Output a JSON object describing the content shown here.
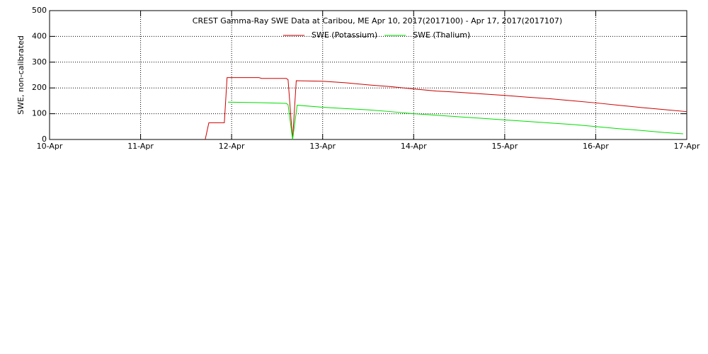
{
  "chart_data": {
    "type": "line",
    "title": "CREST Gamma-Ray SWE Data at Caribou, ME   Apr 10, 2017(2017100) - Apr 17, 2017(2017107)",
    "y_label": "SWE, non-calibrated",
    "xlim": [
      0,
      7
    ],
    "xticks": [
      {
        "value": 0,
        "label": "10-Apr"
      },
      {
        "value": 1,
        "label": "11-Apr"
      },
      {
        "value": 2,
        "label": "12-Apr"
      },
      {
        "value": 3,
        "label": "13-Apr"
      },
      {
        "value": 4,
        "label": "14-Apr"
      },
      {
        "value": 5,
        "label": "15-Apr"
      },
      {
        "value": 6,
        "label": "16-Apr"
      },
      {
        "value": 7,
        "label": "17-Apr"
      }
    ],
    "ylim": [
      0,
      500
    ],
    "yticks": [
      0,
      100,
      200,
      300,
      400,
      500
    ],
    "grid": true,
    "legend": "top",
    "series": [
      {
        "name": "SWE (Potassium)",
        "color": "#cc0000",
        "x": [
          1.71,
          1.75,
          1.92,
          1.95,
          2.3,
          2.33,
          2.6,
          2.62,
          2.67,
          2.71,
          3.0,
          3.25,
          3.5,
          3.75,
          4.0,
          4.25,
          4.5,
          4.75,
          5.0,
          5.25,
          5.5,
          5.75,
          6.0,
          6.25,
          6.5,
          6.75,
          7.0
        ],
        "values": [
          0,
          65,
          65,
          240,
          240,
          237,
          237,
          232,
          0,
          228,
          226,
          220,
          212,
          205,
          196,
          188,
          183,
          177,
          171,
          164,
          158,
          150,
          142,
          133,
          124,
          116,
          108
        ]
      },
      {
        "name": "SWE (Thalium)",
        "color": "#00dd00",
        "x": [
          1.96,
          2.3,
          2.6,
          2.62,
          2.67,
          2.72,
          3.0,
          3.25,
          3.5,
          3.75,
          4.0,
          4.25,
          4.5,
          4.75,
          5.0,
          5.25,
          5.5,
          5.75,
          6.0,
          6.25,
          6.5,
          6.75,
          6.96
        ],
        "values": [
          145,
          143,
          140,
          135,
          0,
          133,
          125,
          120,
          115,
          108,
          100,
          94,
          88,
          82,
          76,
          70,
          64,
          58,
          50,
          42,
          35,
          27,
          22
        ]
      }
    ]
  }
}
